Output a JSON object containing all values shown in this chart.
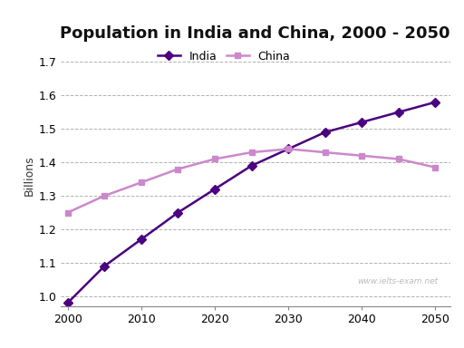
{
  "title": "Population in India and China, 2000 - 2050",
  "ylabel": "Billions",
  "xlabel": "",
  "india": {
    "x": [
      2000,
      2005,
      2010,
      2015,
      2020,
      2025,
      2030,
      2035,
      2040,
      2045,
      2050
    ],
    "y": [
      0.98,
      1.09,
      1.17,
      1.25,
      1.32,
      1.39,
      1.44,
      1.49,
      1.52,
      1.55,
      1.58
    ],
    "color": "#4a0080",
    "marker": "D",
    "label": "India"
  },
  "china": {
    "x": [
      2000,
      2005,
      2010,
      2015,
      2020,
      2025,
      2030,
      2035,
      2040,
      2045,
      2050
    ],
    "y": [
      1.25,
      1.3,
      1.34,
      1.38,
      1.41,
      1.43,
      1.44,
      1.43,
      1.42,
      1.41,
      1.385
    ],
    "color": "#cc88cc",
    "marker": "s",
    "label": "China"
  },
  "ylim": [
    0.97,
    1.75
  ],
  "yticks": [
    1.0,
    1.1,
    1.2,
    1.3,
    1.4,
    1.5,
    1.6,
    1.7
  ],
  "xticks": [
    2000,
    2010,
    2020,
    2030,
    2040,
    2050
  ],
  "xlim": [
    1999,
    2052
  ],
  "grid_color": "#aaaaaa",
  "background_color": "#ffffff",
  "watermark": "www.ielts-exam.net",
  "title_fontsize": 13,
  "axis_fontsize": 9,
  "legend_fontsize": 9
}
